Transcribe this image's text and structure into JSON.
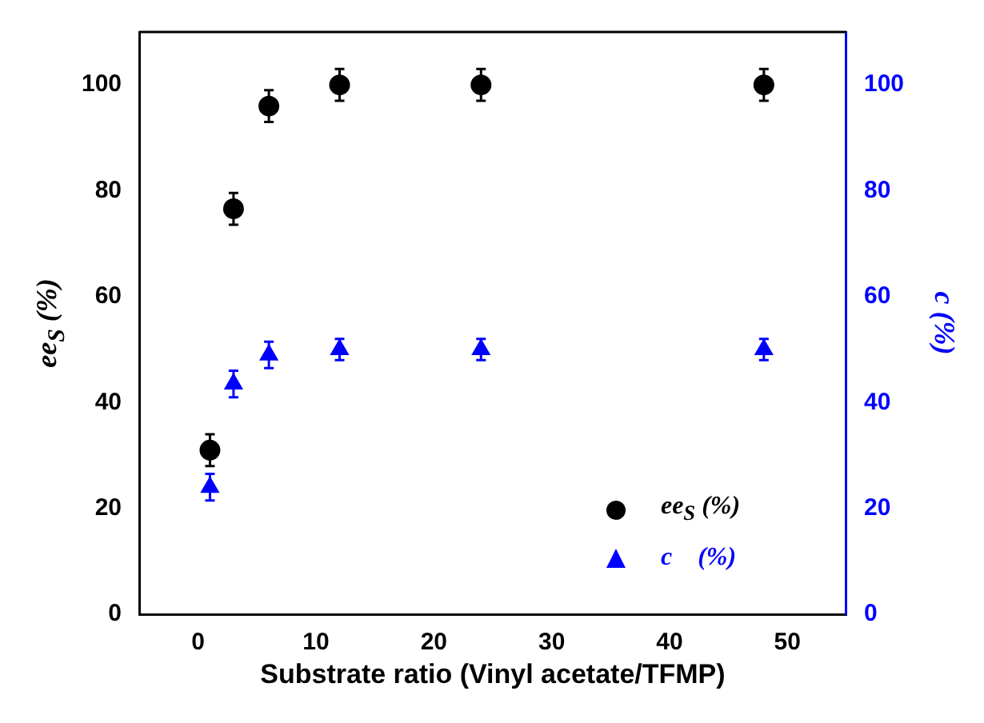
{
  "chart_data": {
    "type": "scatter",
    "xlabel": "Substrate ratio (Vinyl acetate/TFMP)",
    "ylabel": "ee$_{S}$ (%)",
    "y2label": "c (%)",
    "x": [
      1,
      3,
      6,
      12,
      24,
      48
    ],
    "series": [
      {
        "name": "ee$_{S}$ (%)",
        "color": "#000000",
        "marker": "circle",
        "values": [
          31,
          76.6,
          96,
          100,
          100,
          100
        ],
        "errors": [
          3,
          3,
          3,
          3,
          3,
          3
        ]
      },
      {
        "name": "c    (%)",
        "color": "#0000ff",
        "marker": "triangle",
        "axis": "y2",
        "values": [
          24,
          43.5,
          49,
          50,
          50,
          50
        ],
        "errors": [
          2.5,
          2.5,
          2.5,
          2,
          2,
          2
        ]
      }
    ],
    "xlim": [
      -5,
      55
    ],
    "xticks": [
      0,
      10,
      20,
      30,
      40,
      50
    ],
    "ylim": [
      0,
      110
    ],
    "yticks": [
      0,
      20,
      40,
      60,
      80,
      100
    ],
    "y2lim": [
      0,
      110
    ],
    "y2ticks": [
      0,
      20,
      40,
      60,
      80,
      100
    ],
    "grid": false,
    "legend": "bottom right"
  }
}
